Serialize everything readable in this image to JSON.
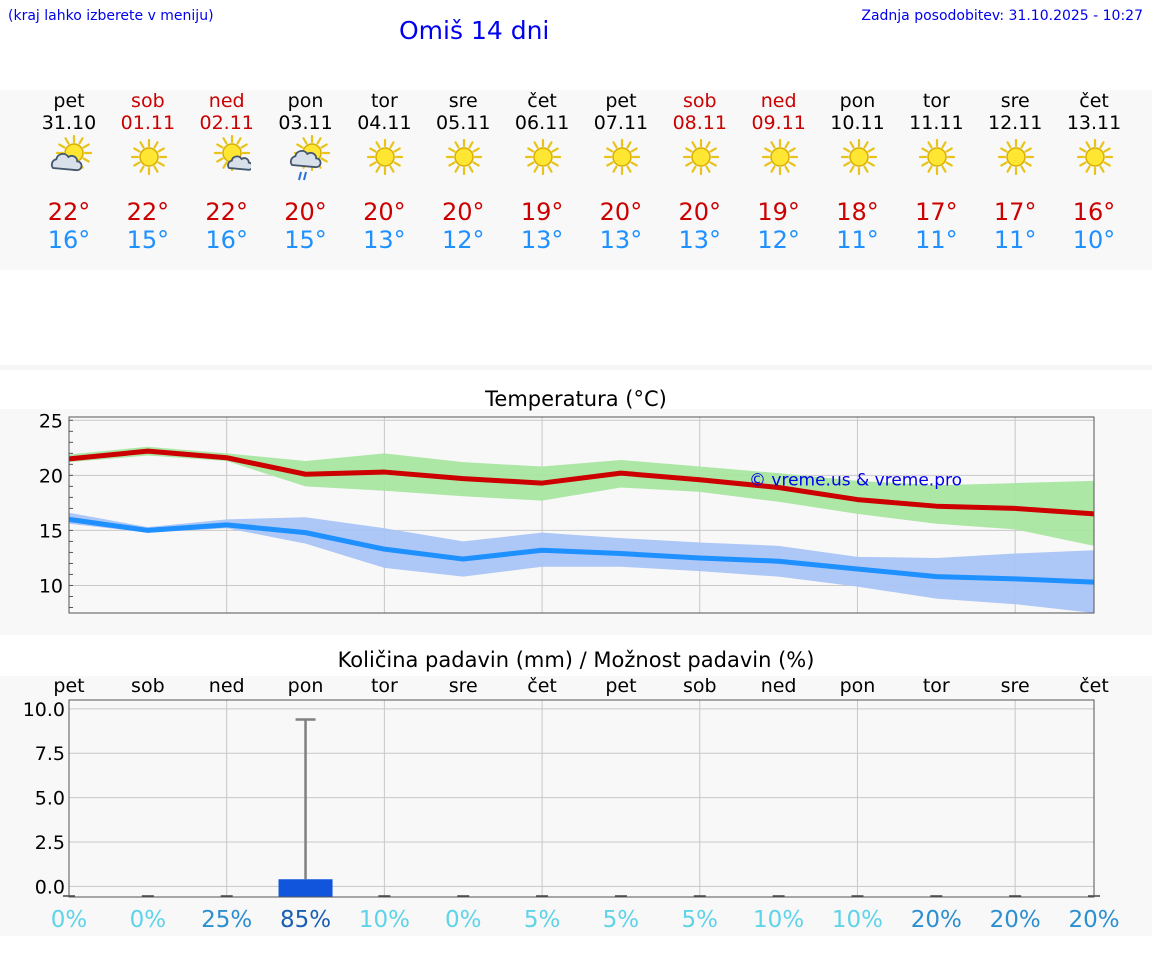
{
  "header": {
    "hint": "(kraj lahko izberete v meniju)",
    "title": "Omiš 14 dni",
    "updated": "Zadnja posodobitev: 31.10.2025 - 10:27"
  },
  "days": [
    {
      "name": "pet",
      "date": "31.10",
      "weekend": false,
      "icon": "sun-cloud-icon",
      "max": "22°",
      "min": "16°"
    },
    {
      "name": "sob",
      "date": "01.11",
      "weekend": true,
      "icon": "sun-icon",
      "max": "22°",
      "min": "15°"
    },
    {
      "name": "ned",
      "date": "02.11",
      "weekend": true,
      "icon": "sun-cloud-icon",
      "max": "22°",
      "min": "16°"
    },
    {
      "name": "pon",
      "date": "03.11",
      "weekend": false,
      "icon": "sun-rain-icon",
      "max": "20°",
      "min": "15°"
    },
    {
      "name": "tor",
      "date": "04.11",
      "weekend": false,
      "icon": "sun-icon",
      "max": "20°",
      "min": "13°"
    },
    {
      "name": "sre",
      "date": "05.11",
      "weekend": false,
      "icon": "sun-icon",
      "max": "20°",
      "min": "12°"
    },
    {
      "name": "čet",
      "date": "06.11",
      "weekend": false,
      "icon": "sun-icon",
      "max": "19°",
      "min": "13°"
    },
    {
      "name": "pet",
      "date": "07.11",
      "weekend": false,
      "icon": "sun-icon",
      "max": "20°",
      "min": "13°"
    },
    {
      "name": "sob",
      "date": "08.11",
      "weekend": true,
      "icon": "sun-icon",
      "max": "20°",
      "min": "13°"
    },
    {
      "name": "ned",
      "date": "09.11",
      "weekend": true,
      "icon": "sun-icon",
      "max": "19°",
      "min": "12°"
    },
    {
      "name": "pon",
      "date": "10.11",
      "weekend": false,
      "icon": "sun-icon",
      "max": "18°",
      "min": "11°"
    },
    {
      "name": "tor",
      "date": "11.11",
      "weekend": false,
      "icon": "sun-icon",
      "max": "17°",
      "min": "11°"
    },
    {
      "name": "sre",
      "date": "12.11",
      "weekend": false,
      "icon": "sun-icon",
      "max": "17°",
      "min": "11°"
    },
    {
      "name": "čet",
      "date": "13.11",
      "weekend": false,
      "icon": "sun-icon",
      "max": "16°",
      "min": "10°"
    }
  ],
  "colors": {
    "max": "#cc0000",
    "min": "#1e90ff",
    "maxBand": "#a8e6a0",
    "minBand": "#a9c4f5",
    "precipBar": "#1155dd"
  },
  "chart_data": [
    {
      "type": "line",
      "title": "Temperatura (°C)",
      "ylim": [
        7.5,
        25.3
      ],
      "yticks": [
        10,
        15,
        20,
        25
      ],
      "watermark": "© vreme.us & vreme.pro",
      "series": [
        {
          "name": "max",
          "values": [
            21.5,
            22.2,
            21.6,
            20.1,
            20.3,
            19.7,
            19.3,
            20.2,
            19.6,
            18.9,
            17.8,
            17.2,
            17.0,
            16.5
          ],
          "band_low": [
            21.2,
            21.8,
            21.3,
            19.0,
            18.6,
            18.1,
            17.7,
            18.9,
            18.5,
            17.6,
            16.5,
            15.6,
            15.1,
            13.6
          ],
          "band_high": [
            21.9,
            22.6,
            22.0,
            21.3,
            22.0,
            21.2,
            20.8,
            21.4,
            20.8,
            20.2,
            19.5,
            19.1,
            19.3,
            19.5
          ]
        },
        {
          "name": "min",
          "values": [
            16.0,
            15.0,
            15.5,
            14.8,
            13.3,
            12.4,
            13.2,
            12.9,
            12.5,
            12.2,
            11.5,
            10.8,
            10.6,
            10.3
          ],
          "band_low": [
            15.6,
            14.8,
            15.2,
            13.8,
            11.6,
            10.8,
            11.7,
            11.7,
            11.3,
            10.8,
            9.9,
            8.8,
            8.3,
            7.5
          ],
          "band_high": [
            16.6,
            15.3,
            16.0,
            16.2,
            15.2,
            14.0,
            14.8,
            14.3,
            13.9,
            13.6,
            12.6,
            12.5,
            12.9,
            13.2
          ]
        }
      ]
    },
    {
      "type": "bar",
      "title": "Količina padavin (mm) / Možnost padavin (%)",
      "ylim": [
        -0.6,
        10.5
      ],
      "yticks": [
        "0.0",
        "2.5",
        "5.0",
        "7.5",
        "10.0"
      ],
      "categories": [
        "pet",
        "sob",
        "ned",
        "pon",
        "tor",
        "sre",
        "čet",
        "pet",
        "sob",
        "ned",
        "pon",
        "tor",
        "sre",
        "čet"
      ],
      "values": [
        0,
        0,
        0,
        0.3,
        0,
        0,
        0,
        0,
        0,
        0,
        0,
        0,
        0,
        0
      ],
      "error_high": [
        0,
        0,
        0,
        9.4,
        0,
        0,
        0,
        0,
        0,
        0,
        0,
        0,
        0,
        0
      ],
      "probability": [
        "0%",
        "0%",
        "25%",
        "85%",
        "10%",
        "0%",
        "5%",
        "5%",
        "5%",
        "10%",
        "10%",
        "20%",
        "20%",
        "20%"
      ],
      "probability_values": [
        0,
        0,
        25,
        85,
        10,
        0,
        5,
        5,
        5,
        10,
        10,
        20,
        20,
        20
      ]
    }
  ]
}
